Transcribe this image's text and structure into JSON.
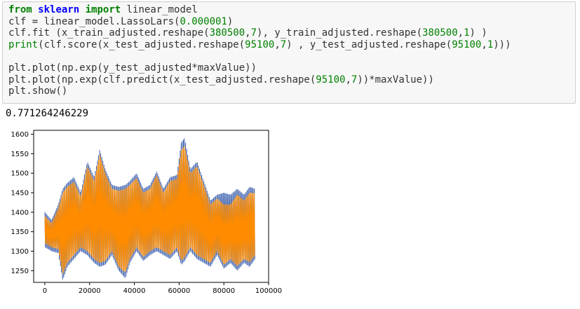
{
  "code_cell": {
    "lines": [
      [
        {
          "t": "from",
          "c": "kw"
        },
        {
          "t": " "
        },
        {
          "t": "sklearn",
          "c": "mod"
        },
        {
          "t": " "
        },
        {
          "t": "import",
          "c": "kw"
        },
        {
          "t": " linear_model"
        }
      ],
      [
        {
          "t": "clf = linear_model.LassoLars("
        },
        {
          "t": "0.000001",
          "c": "num"
        },
        {
          "t": ")"
        }
      ],
      [
        {
          "t": "clf.fit (x_train_adjusted.reshape("
        },
        {
          "t": "380500",
          "c": "num"
        },
        {
          "t": ","
        },
        {
          "t": "7",
          "c": "num"
        },
        {
          "t": "), y_train_adjusted.reshape("
        },
        {
          "t": "380500",
          "c": "num"
        },
        {
          "t": ","
        },
        {
          "t": "1",
          "c": "num"
        },
        {
          "t": ") )"
        }
      ],
      [
        {
          "t": "print",
          "c": "fn"
        },
        {
          "t": "(clf.score(x_test_adjusted.reshape("
        },
        {
          "t": "95100",
          "c": "num"
        },
        {
          "t": ","
        },
        {
          "t": "7",
          "c": "num"
        },
        {
          "t": ") , y_test_adjusted.reshape("
        },
        {
          "t": "95100",
          "c": "num"
        },
        {
          "t": ","
        },
        {
          "t": "1",
          "c": "num"
        },
        {
          "t": ")))"
        }
      ],
      [
        {
          "t": ""
        }
      ],
      [
        {
          "t": "plt.plot(np.exp(y_test_adjusted*maxValue))"
        }
      ],
      [
        {
          "t": "plt.plot(np.exp(clf.predict(x_test_adjusted.reshape("
        },
        {
          "t": "95100",
          "c": "num"
        },
        {
          "t": ","
        },
        {
          "t": "7",
          "c": "num"
        },
        {
          "t": "))*maxValue))"
        }
      ],
      [
        {
          "t": "plt.show()"
        }
      ]
    ]
  },
  "output": {
    "score_text": "0.771264246229"
  },
  "chart_data": {
    "type": "line",
    "title": "",
    "xlabel": "",
    "ylabel": "",
    "xlim": [
      -5000,
      100000
    ],
    "ylim": [
      1220,
      1610
    ],
    "xticks": [
      0,
      20000,
      40000,
      60000,
      80000,
      100000
    ],
    "xtick_labels": [
      "0",
      "20000",
      "40000",
      "60000",
      "80000",
      "100000"
    ],
    "yticks": [
      1250,
      1300,
      1350,
      1400,
      1450,
      1500,
      1550,
      1600
    ],
    "ytick_labels": [
      "1250",
      "1300",
      "1350",
      "1400",
      "1450",
      "1500",
      "1550",
      "1600"
    ],
    "grid": false,
    "series": [
      {
        "color": "#3b5fac",
        "x": [
          0,
          3000,
          6000,
          8000,
          10000,
          13000,
          16000,
          19000,
          22000,
          24500,
          27000,
          30000,
          33000,
          36000,
          38000,
          41000,
          44000,
          47000,
          50000,
          53000,
          56000,
          59000,
          61000,
          62500,
          65000,
          68000,
          71000,
          74000,
          77000,
          80000,
          83000,
          86000,
          89000,
          91500,
          94000
        ],
        "lower": [
          1310,
          1300,
          1295,
          1225,
          1260,
          1280,
          1300,
          1290,
          1270,
          1260,
          1265,
          1290,
          1250,
          1230,
          1270,
          1300,
          1275,
          1290,
          1300,
          1290,
          1280,
          1300,
          1265,
          1275,
          1300,
          1280,
          1270,
          1260,
          1290,
          1255,
          1270,
          1250,
          1270,
          1260,
          1280
        ],
        "upper": [
          1400,
          1380,
          1420,
          1460,
          1475,
          1490,
          1450,
          1530,
          1490,
          1560,
          1510,
          1470,
          1465,
          1470,
          1480,
          1500,
          1460,
          1470,
          1505,
          1460,
          1490,
          1495,
          1580,
          1590,
          1510,
          1530,
          1480,
          1430,
          1445,
          1450,
          1445,
          1460,
          1445,
          1465,
          1460
        ]
      },
      {
        "color": "#ff8c00",
        "x": [
          0,
          3000,
          6000,
          8000,
          10000,
          13000,
          16000,
          19000,
          22000,
          24500,
          27000,
          30000,
          33000,
          36000,
          38000,
          41000,
          44000,
          47000,
          50000,
          53000,
          56000,
          59000,
          61000,
          62500,
          65000,
          68000,
          71000,
          74000,
          77000,
          80000,
          83000,
          86000,
          89000,
          91500,
          94000
        ],
        "lower": [
          1320,
          1310,
          1305,
          1240,
          1270,
          1290,
          1310,
          1300,
          1280,
          1270,
          1275,
          1300,
          1260,
          1245,
          1280,
          1310,
          1285,
          1300,
          1310,
          1300,
          1290,
          1310,
          1275,
          1285,
          1310,
          1290,
          1280,
          1270,
          1300,
          1265,
          1280,
          1262,
          1280,
          1272,
          1290
        ],
        "upper": [
          1390,
          1372,
          1410,
          1450,
          1465,
          1478,
          1440,
          1518,
          1480,
          1548,
          1500,
          1460,
          1455,
          1460,
          1470,
          1488,
          1450,
          1460,
          1495,
          1450,
          1480,
          1485,
          1560,
          1570,
          1500,
          1518,
          1470,
          1420,
          1435,
          1420,
          1420,
          1445,
          1430,
          1450,
          1448
        ]
      }
    ]
  }
}
